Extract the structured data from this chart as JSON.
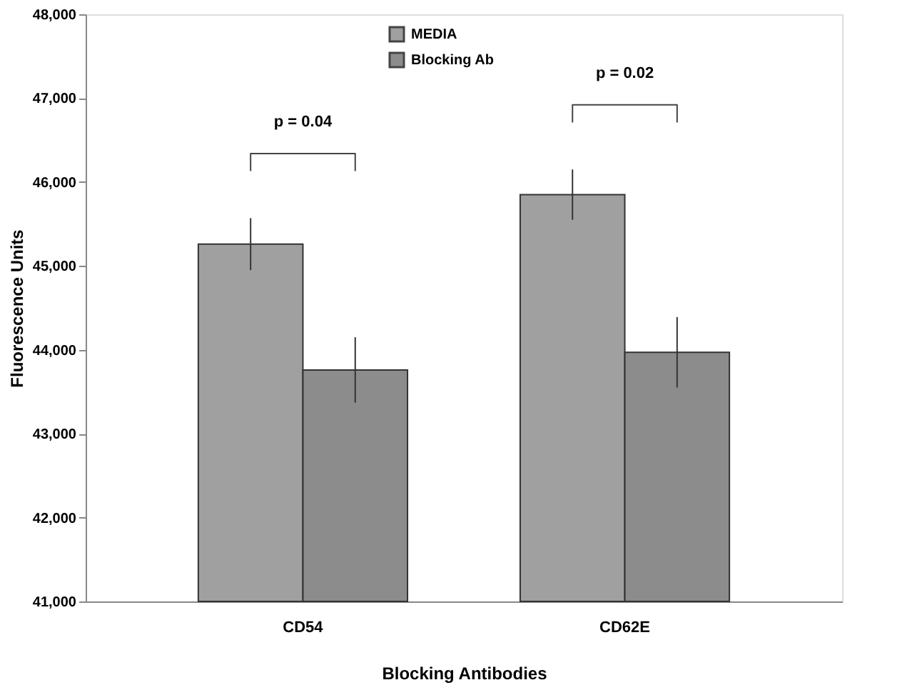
{
  "chart_data": {
    "type": "bar",
    "xlabel": "Blocking Antibodies",
    "ylabel": "Fluorescence Units",
    "categories": [
      "CD54",
      "CD62E"
    ],
    "series": [
      {
        "name": "MEDIA",
        "color": "#a0a0a0",
        "values": [
          45260,
          45850
        ],
        "errors": [
          310,
          300
        ]
      },
      {
        "name": "Blocking Ab",
        "color": "#8c8c8c",
        "values": [
          43760,
          43970
        ],
        "errors": [
          390,
          420
        ]
      }
    ],
    "ylim": [
      41000,
      48000
    ],
    "yticks": [
      {
        "value": 41000,
        "label": "41,000"
      },
      {
        "value": 42000,
        "label": "42,000"
      },
      {
        "value": 43000,
        "label": "43,000"
      },
      {
        "value": 44000,
        "label": "44,000"
      },
      {
        "value": 45000,
        "label": "45,000"
      },
      {
        "value": 46000,
        "label": "46,000"
      },
      {
        "value": 47000,
        "label": "47,000"
      },
      {
        "value": 48000,
        "label": "48,000"
      }
    ],
    "annotations": [
      "p = 0.04",
      "p = 0.02"
    ],
    "legend": "top",
    "grid": false
  }
}
